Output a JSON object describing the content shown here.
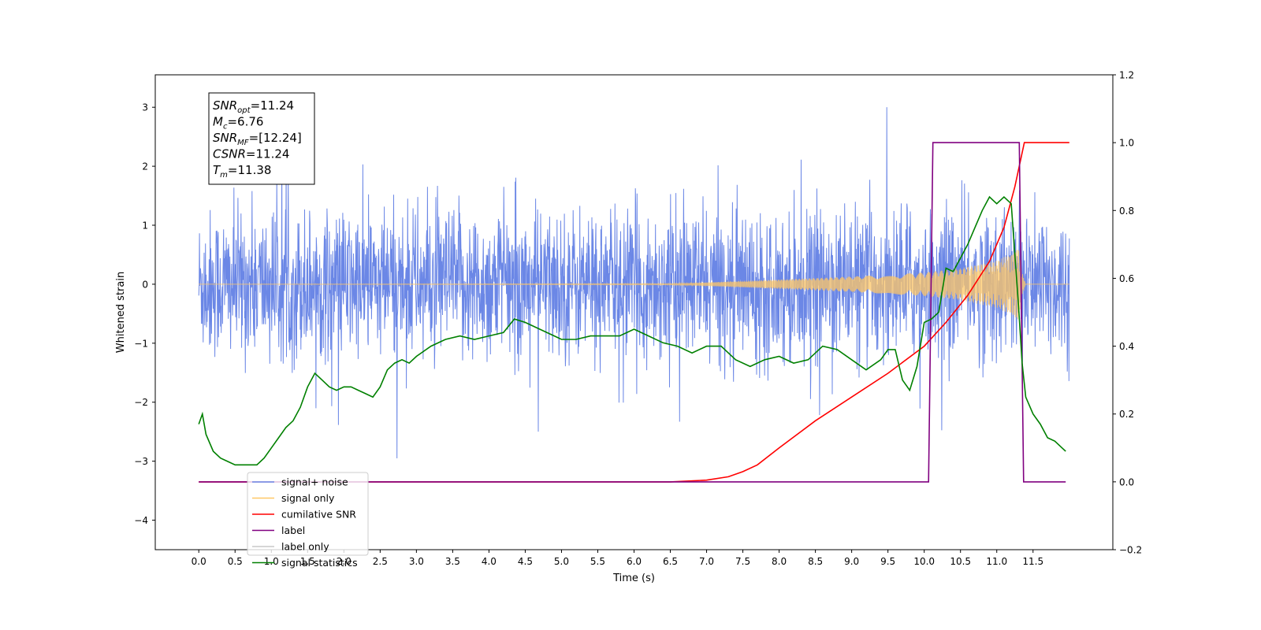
{
  "chart_data": {
    "type": "line",
    "title": "",
    "xlabel": "Time (s)",
    "ylabel": "Whitened strain",
    "xlim": [
      -0.6,
      12.6
    ],
    "ylim_left": [
      -4.5,
      3.55
    ],
    "ylim_right": [
      -0.2,
      1.2
    ],
    "x_ticks": [
      0.0,
      0.5,
      1.0,
      1.5,
      2.0,
      2.5,
      3.0,
      3.5,
      4.0,
      4.5,
      5.0,
      5.5,
      6.0,
      6.5,
      7.0,
      7.5,
      8.0,
      8.5,
      9.0,
      9.5,
      10.0,
      10.5,
      11.0,
      11.5
    ],
    "x_tick_labels": [
      "0.0",
      "0.5",
      "1.0",
      "1.5",
      "2.0",
      "2.5",
      "3.0",
      "3.5",
      "4.0",
      "4.5",
      "5.0",
      "5.5",
      "6.0",
      "6.5",
      "7.0",
      "7.5",
      "8.0",
      "8.5",
      "9.0",
      "9.5",
      "10.0",
      "10.5",
      "11.0",
      "11.5"
    ],
    "y_left_ticks": [
      -4,
      -3,
      -2,
      -1,
      0,
      1,
      2,
      3
    ],
    "y_left_tick_labels": [
      "−4",
      "−3",
      "−2",
      "−1",
      "0",
      "1",
      "2",
      "3"
    ],
    "y_right_ticks": [
      -0.2,
      0.0,
      0.2,
      0.4,
      0.6,
      0.8,
      1.0,
      1.2
    ],
    "y_right_tick_labels": [
      "−0.2",
      "0.0",
      "0.2",
      "0.4",
      "0.6",
      "0.8",
      "1.0",
      "1.2"
    ],
    "grid": false,
    "legend_position": "bottom-left",
    "legend": [
      {
        "label": "signal+ noise",
        "color": "#6b87e6"
      },
      {
        "label": "signal only",
        "color": "#ffc766"
      },
      {
        "label": "cumilative SNR",
        "color": "#ff0000"
      },
      {
        "label": "label",
        "color": "#800080"
      },
      {
        "label": "label only",
        "color": "#c8c8c8"
      },
      {
        "label": "signal statistics",
        "color": "#008000"
      }
    ],
    "annotation": {
      "lines": [
        {
          "base": "SNR",
          "sub": "opt",
          "value": "=11.24"
        },
        {
          "base": "M",
          "sub": "c",
          "value": "=6.76"
        },
        {
          "base": "SNR",
          "sub": "MF",
          "value": "=[12.24]"
        },
        {
          "base": "CSNR",
          "sub": "",
          "value": "=11.24"
        },
        {
          "base": "T",
          "sub": "m",
          "value": "=11.38"
        }
      ]
    },
    "series": [
      {
        "name": "signal+ noise",
        "axis": "left",
        "color": "#6b87e6",
        "description": "white noise band, approximately ±1.5 typical with spikes to ±3.2",
        "x_range": [
          0.0,
          12.0
        ],
        "typical_amplitude": 1.5,
        "max_amplitude": 3.2
      },
      {
        "name": "signal only",
        "axis": "left",
        "color": "#ffc766",
        "description": "chirp envelope (x, amplitude)",
        "envelope": [
          [
            0.0,
            0.0
          ],
          [
            6.5,
            0.01
          ],
          [
            7.0,
            0.03
          ],
          [
            8.0,
            0.08
          ],
          [
            9.0,
            0.13
          ],
          [
            10.0,
            0.2
          ],
          [
            10.5,
            0.27
          ],
          [
            11.0,
            0.4
          ],
          [
            11.2,
            0.52
          ],
          [
            11.3,
            0.65
          ],
          [
            11.35,
            0.2
          ],
          [
            11.4,
            0.0
          ],
          [
            12.0,
            0.0
          ]
        ]
      },
      {
        "name": "cumilative SNR",
        "axis": "right",
        "color": "#ff0000",
        "x": [
          0.0,
          6.5,
          7.0,
          7.3,
          7.5,
          7.7,
          8.0,
          8.5,
          9.0,
          9.5,
          10.0,
          10.3,
          10.6,
          10.9,
          11.1,
          11.25,
          11.38,
          12.0
        ],
        "y": [
          0.0,
          0.0,
          0.005,
          0.015,
          0.03,
          0.05,
          0.1,
          0.18,
          0.25,
          0.32,
          0.4,
          0.47,
          0.55,
          0.65,
          0.75,
          0.87,
          1.0,
          1.0
        ]
      },
      {
        "name": "label",
        "axis": "right",
        "color": "#800080",
        "x": [
          0.0,
          10.06,
          10.12,
          11.31,
          11.37,
          11.95
        ],
        "y": [
          0.0,
          0.0,
          1.0,
          1.0,
          0.0,
          0.0
        ]
      },
      {
        "name": "signal statistics",
        "axis": "right",
        "color": "#008000",
        "x": [
          0.0,
          0.05,
          0.1,
          0.2,
          0.3,
          0.4,
          0.5,
          0.6,
          0.7,
          0.8,
          0.9,
          1.0,
          1.1,
          1.2,
          1.3,
          1.4,
          1.5,
          1.6,
          1.7,
          1.8,
          1.9,
          2.0,
          2.1,
          2.2,
          2.3,
          2.4,
          2.5,
          2.6,
          2.7,
          2.8,
          2.9,
          3.0,
          3.2,
          3.4,
          3.6,
          3.8,
          4.0,
          4.2,
          4.35,
          4.5,
          4.7,
          4.9,
          5.0,
          5.2,
          5.4,
          5.6,
          5.8,
          6.0,
          6.2,
          6.4,
          6.6,
          6.8,
          7.0,
          7.2,
          7.4,
          7.6,
          7.8,
          8.0,
          8.2,
          8.4,
          8.6,
          8.8,
          9.0,
          9.2,
          9.4,
          9.5,
          9.6,
          9.7,
          9.8,
          9.9,
          10.0,
          10.1,
          10.2,
          10.3,
          10.4,
          10.5,
          10.6,
          10.7,
          10.8,
          10.9,
          11.0,
          11.1,
          11.2,
          11.3,
          11.35,
          11.4,
          11.5,
          11.6,
          11.7,
          11.8,
          11.9,
          11.95
        ],
        "y": [
          0.17,
          0.2,
          0.14,
          0.09,
          0.07,
          0.06,
          0.05,
          0.05,
          0.05,
          0.05,
          0.07,
          0.1,
          0.13,
          0.16,
          0.18,
          0.22,
          0.28,
          0.32,
          0.3,
          0.28,
          0.27,
          0.28,
          0.28,
          0.27,
          0.26,
          0.25,
          0.28,
          0.33,
          0.35,
          0.36,
          0.35,
          0.37,
          0.4,
          0.42,
          0.43,
          0.42,
          0.43,
          0.44,
          0.48,
          0.47,
          0.45,
          0.43,
          0.42,
          0.42,
          0.43,
          0.43,
          0.43,
          0.45,
          0.43,
          0.41,
          0.4,
          0.38,
          0.4,
          0.4,
          0.36,
          0.34,
          0.36,
          0.37,
          0.35,
          0.36,
          0.4,
          0.39,
          0.36,
          0.33,
          0.36,
          0.39,
          0.39,
          0.3,
          0.27,
          0.34,
          0.47,
          0.48,
          0.5,
          0.63,
          0.62,
          0.66,
          0.7,
          0.75,
          0.8,
          0.84,
          0.82,
          0.84,
          0.82,
          0.52,
          0.35,
          0.25,
          0.2,
          0.17,
          0.13,
          0.12,
          0.1,
          0.09
        ]
      }
    ]
  }
}
